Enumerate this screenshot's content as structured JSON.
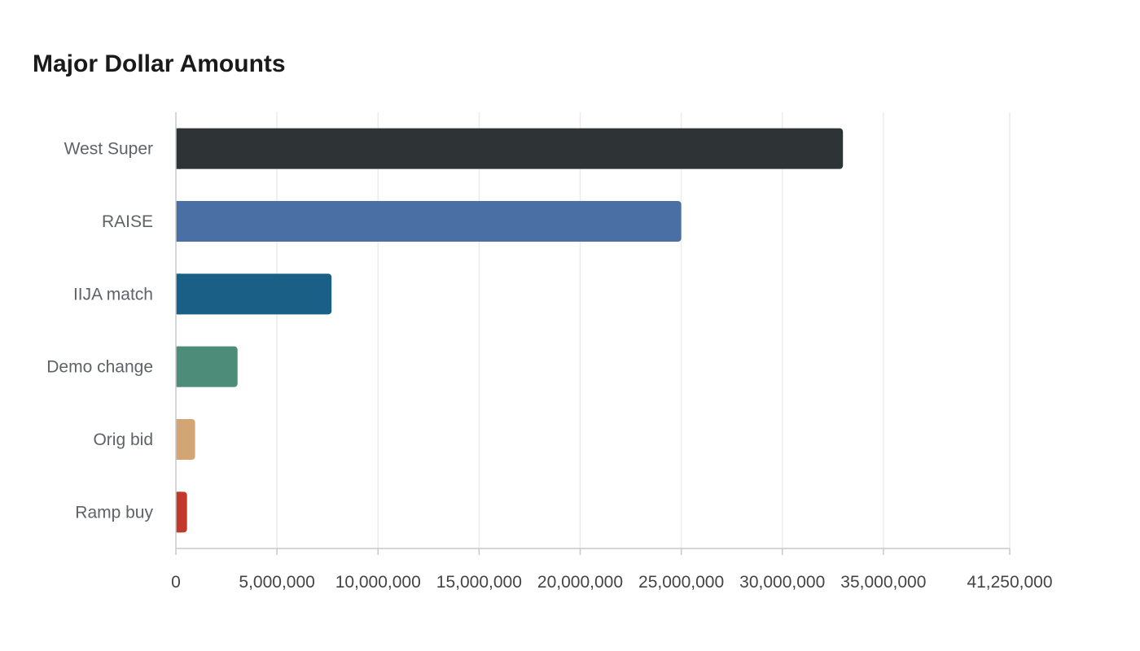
{
  "chart_data": {
    "type": "bar",
    "orientation": "horizontal",
    "title": "Major Dollar Amounts",
    "xlabel": "",
    "ylabel": "",
    "xlim": [
      0,
      41250000
    ],
    "grid": true,
    "legend": "none",
    "categories": [
      "West Super",
      "RAISE",
      "IIJA match",
      "Demo change",
      "Orig bid",
      "Ramp buy"
    ],
    "values": [
      33000000,
      25000000,
      7700000,
      3050000,
      950000,
      550000
    ],
    "colors": [
      "#2e3436",
      "#4a6fa5",
      "#1a5f86",
      "#4e8c7a",
      "#d4a574",
      "#c0392b"
    ],
    "x_ticks": [
      0,
      5000000,
      10000000,
      15000000,
      20000000,
      25000000,
      30000000,
      35000000,
      41250000
    ],
    "x_tick_labels": [
      "0",
      "5,000,000",
      "10,000,000",
      "15,000,000",
      "20,000,000",
      "25,000,000",
      "30,000,000",
      "35,000,000",
      "41,250,000"
    ]
  }
}
